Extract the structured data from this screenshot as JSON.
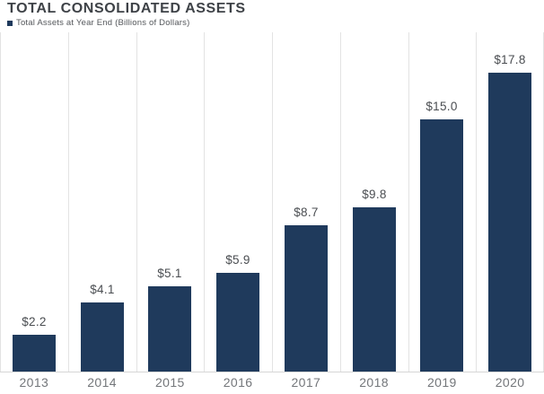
{
  "header": {
    "title": "TOTAL CONSOLIDATED ASSETS"
  },
  "legend": {
    "label": "Total Assets at Year End (Billions of Dollars)"
  },
  "colors": {
    "bar": "#1f3a5c",
    "title_text": "#3e4247",
    "legend_text": "#54575b",
    "value_label_text": "#4a4d51",
    "axis_tick_text": "#73767a",
    "gridline": "#e3e3e3",
    "baseline": "#d6d6d6",
    "background": "#ffffff"
  },
  "chart_data": {
    "type": "bar",
    "title": "TOTAL CONSOLIDATED ASSETS",
    "legend_entries": [
      "Total Assets at Year End (Billions of Dollars)"
    ],
    "legend_position": "top-left",
    "categories": [
      "2013",
      "2014",
      "2015",
      "2016",
      "2017",
      "2018",
      "2019",
      "2020"
    ],
    "values": [
      2.2,
      4.1,
      5.1,
      5.9,
      8.7,
      9.8,
      15.0,
      17.8
    ],
    "value_labels": [
      "$2.2",
      "$4.1",
      "$5.1",
      "$5.9",
      "$8.7",
      "$9.8",
      "$15.0",
      "$17.8"
    ],
    "xlabel": "",
    "ylabel": "Billions of Dollars",
    "ylim": [
      0,
      20.2
    ],
    "grid": "vertical-column-separators",
    "y_axis_ticks_visible": false
  }
}
